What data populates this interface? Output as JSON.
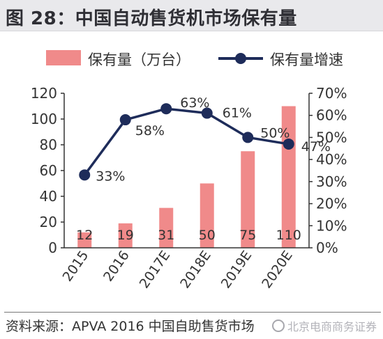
{
  "title": "图 28：中国自动售货机市场保有量",
  "legend": {
    "bar_label": "保有量（万台）",
    "line_label": "保有量增速"
  },
  "colors": {
    "bar": "#f08a8a",
    "line": "#1e2c5a",
    "axis": "#333333",
    "text": "#333333"
  },
  "chart_data": {
    "type": "bar",
    "categories": [
      "2015",
      "2016",
      "2017E",
      "2018E",
      "2019E",
      "2020E"
    ],
    "series": [
      {
        "name": "保有量（万台）",
        "type": "bar",
        "axis": "left",
        "values": [
          12,
          19,
          31,
          50,
          75,
          110
        ],
        "labels": [
          "12",
          "19",
          "31",
          "50",
          "75",
          "110"
        ]
      },
      {
        "name": "保有量增速",
        "type": "line",
        "axis": "right",
        "values": [
          0.33,
          0.58,
          0.63,
          0.61,
          0.5,
          0.47
        ],
        "labels": [
          "33%",
          "58%",
          "63%",
          "61%",
          "50%",
          "47%"
        ]
      }
    ],
    "y_left": {
      "min": 0,
      "max": 120,
      "ticks": [
        "0",
        "20",
        "40",
        "60",
        "80",
        "100",
        "120"
      ]
    },
    "y_right": {
      "min": 0,
      "max": 0.7,
      "ticks": [
        "0%",
        "10%",
        "20%",
        "30%",
        "40%",
        "50%",
        "60%",
        "70%"
      ]
    },
    "grid": false,
    "legend_position": "top"
  },
  "source": "资料来源：APVA 2016 中国自助售货市场",
  "watermark": "北京电商商务证券"
}
